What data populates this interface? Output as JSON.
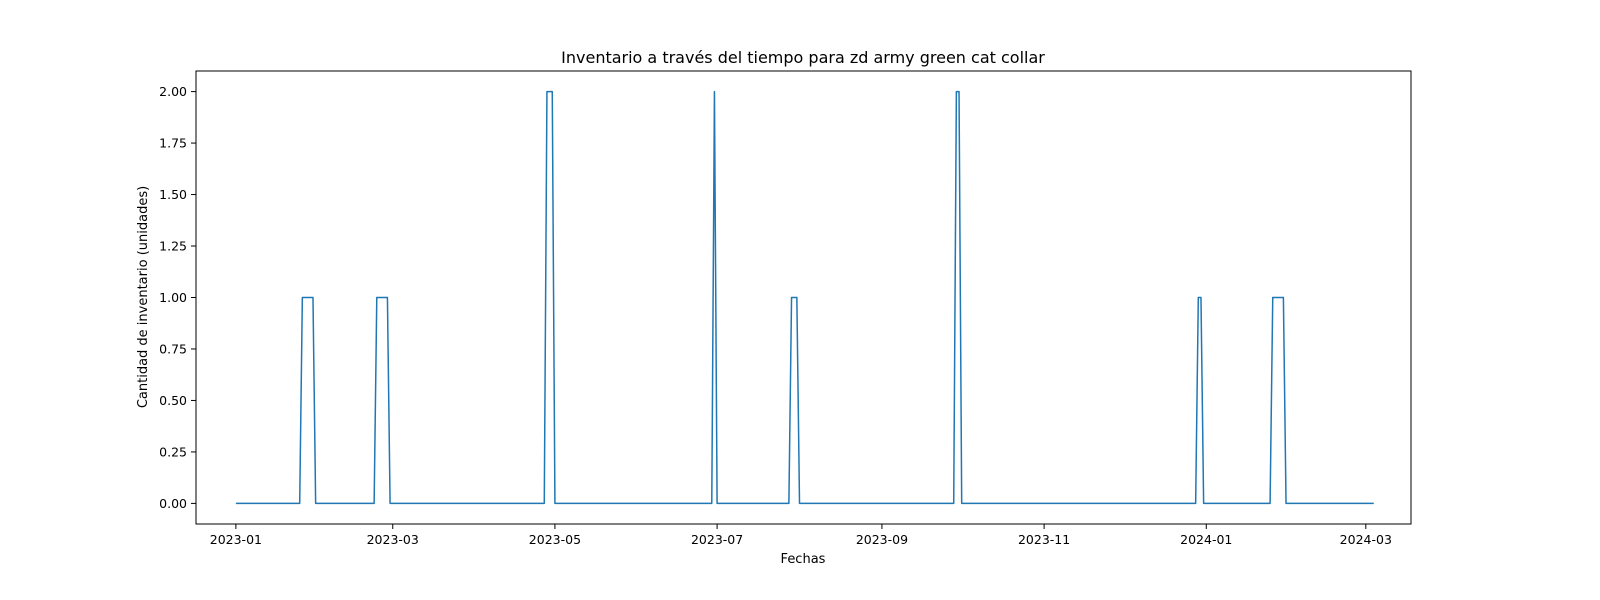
{
  "chart_data": {
    "type": "line",
    "title": "Inventario a través del tiempo para zd army green cat collar",
    "xlabel": "Fechas",
    "ylabel": "Cantidad de inventario (unidades)",
    "x_axis_type": "date",
    "xlim": [
      "2022-12-17",
      "2024-03-18"
    ],
    "ylim": [
      -0.1,
      2.1
    ],
    "x_ticks": [
      {
        "date": "2023-01-01",
        "label": "2023-01"
      },
      {
        "date": "2023-03-01",
        "label": "2023-03"
      },
      {
        "date": "2023-05-01",
        "label": "2023-05"
      },
      {
        "date": "2023-07-01",
        "label": "2023-07"
      },
      {
        "date": "2023-09-01",
        "label": "2023-09"
      },
      {
        "date": "2023-11-01",
        "label": "2023-11"
      },
      {
        "date": "2024-01-01",
        "label": "2024-01"
      },
      {
        "date": "2024-03-01",
        "label": "2024-03"
      }
    ],
    "y_ticks": [
      {
        "value": 0.0,
        "label": "0.00"
      },
      {
        "value": 0.25,
        "label": "0.25"
      },
      {
        "value": 0.5,
        "label": "0.50"
      },
      {
        "value": 0.75,
        "label": "0.75"
      },
      {
        "value": 1.0,
        "label": "1.00"
      },
      {
        "value": 1.25,
        "label": "1.25"
      },
      {
        "value": 1.5,
        "label": "1.50"
      },
      {
        "value": 1.75,
        "label": "1.75"
      },
      {
        "value": 2.0,
        "label": "2.00"
      }
    ],
    "grid": false,
    "legend": "none",
    "series": [
      {
        "color": "#1f77b4",
        "points": [
          {
            "x": "2023-01-01",
            "y": 0
          },
          {
            "x": "2023-01-25",
            "y": 0
          },
          {
            "x": "2023-01-26",
            "y": 1
          },
          {
            "x": "2023-01-30",
            "y": 1
          },
          {
            "x": "2023-01-31",
            "y": 0
          },
          {
            "x": "2023-02-22",
            "y": 0
          },
          {
            "x": "2023-02-23",
            "y": 1
          },
          {
            "x": "2023-02-27",
            "y": 1
          },
          {
            "x": "2023-02-28",
            "y": 0
          },
          {
            "x": "2023-04-27",
            "y": 0
          },
          {
            "x": "2023-04-28",
            "y": 2
          },
          {
            "x": "2023-04-30",
            "y": 2
          },
          {
            "x": "2023-05-01",
            "y": 0
          },
          {
            "x": "2023-06-29",
            "y": 0
          },
          {
            "x": "2023-06-30",
            "y": 2
          },
          {
            "x": "2023-07-01",
            "y": 0
          },
          {
            "x": "2023-07-28",
            "y": 0
          },
          {
            "x": "2023-07-29",
            "y": 1
          },
          {
            "x": "2023-07-31",
            "y": 1
          },
          {
            "x": "2023-08-01",
            "y": 0
          },
          {
            "x": "2023-09-28",
            "y": 0
          },
          {
            "x": "2023-09-29",
            "y": 2
          },
          {
            "x": "2023-09-30",
            "y": 2
          },
          {
            "x": "2023-10-01",
            "y": 0
          },
          {
            "x": "2023-12-28",
            "y": 0
          },
          {
            "x": "2023-12-29",
            "y": 1
          },
          {
            "x": "2023-12-30",
            "y": 1
          },
          {
            "x": "2023-12-31",
            "y": 0
          },
          {
            "x": "2024-01-25",
            "y": 0
          },
          {
            "x": "2024-01-26",
            "y": 1
          },
          {
            "x": "2024-01-30",
            "y": 1
          },
          {
            "x": "2024-01-31",
            "y": 0
          },
          {
            "x": "2024-03-04",
            "y": 0
          }
        ]
      }
    ]
  }
}
